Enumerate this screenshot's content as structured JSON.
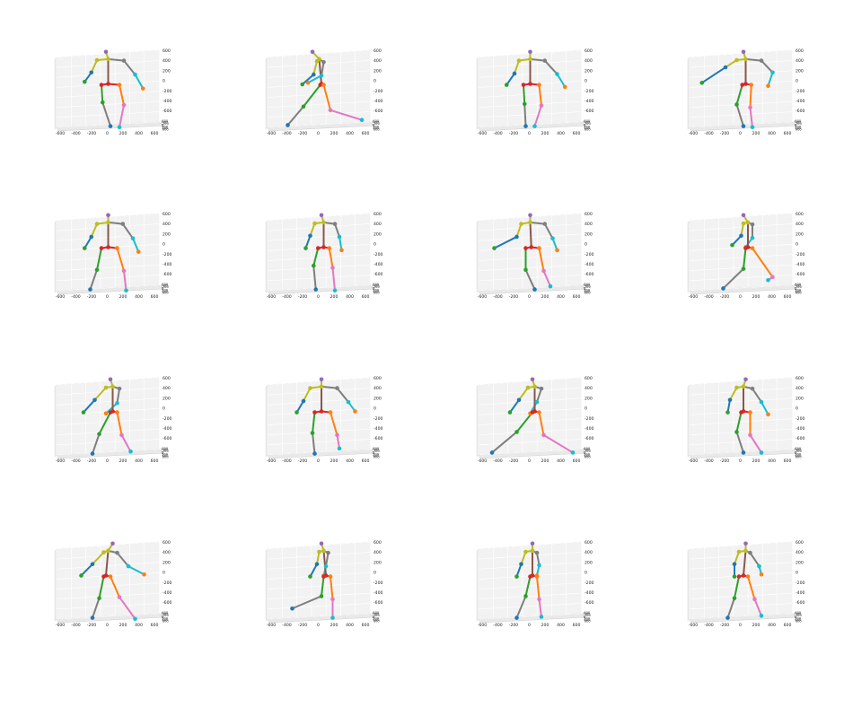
{
  "chart_data": {
    "type": "3d-skeleton-grid",
    "rows": 4,
    "cols": 4,
    "axes": {
      "x_ticks": [
        "-600",
        "-400",
        "-200",
        "0",
        "200",
        "400",
        "600"
      ],
      "z_ticks": [
        "600",
        "400",
        "200",
        "0",
        "-200",
        "-400",
        "-600"
      ],
      "y_ticks_compressed": [
        "-600",
        "-400",
        "-200",
        "0",
        "200",
        "400",
        "600"
      ],
      "xlim": [
        -700,
        700
      ],
      "zlim": [
        -700,
        700
      ],
      "grid": true,
      "background": "#f2f2f2"
    },
    "colors": {
      "head": "#9467bd",
      "neck": "#bcbd22",
      "torso": "#8c564b",
      "spine": "#7f7f7f",
      "left_arm_upper": "#bcbd22",
      "left_arm_lower": "#1f77b4",
      "left_hand": "#2ca02c",
      "right_arm_upper": "#7f7f7f",
      "right_arm_lower": "#17becf",
      "right_hand": "#ff7f0e",
      "hip": "#d62728",
      "left_thigh": "#2ca02c",
      "left_shin": "#7f7f7f",
      "left_foot": "#1f77b4",
      "right_thigh": "#ff7f0e",
      "right_shin": "#e377c2",
      "right_foot": "#17becf"
    },
    "poses": [
      {
        "head": [
          0,
          560
        ],
        "neck": [
          20,
          420
        ],
        "lsh": [
          -80,
          400
        ],
        "rsh": [
          160,
          390
        ],
        "lel": [
          -130,
          160
        ],
        "rel": [
          260,
          120
        ],
        "lhn": [
          -190,
          -20
        ],
        "rhn": [
          330,
          -150
        ],
        "hip": [
          20,
          -60
        ],
        "lhp": [
          -40,
          -80
        ],
        "rhp": [
          120,
          -80
        ],
        "lkn": [
          -30,
          -420
        ],
        "rkn": [
          160,
          -470
        ],
        "lft": [
          40,
          -880
        ],
        "rft": [
          120,
          -900
        ]
      },
      {
        "head": [
          -40,
          560
        ],
        "neck": [
          20,
          420
        ],
        "lsh": [
          0,
          380
        ],
        "rsh": [
          60,
          360
        ],
        "lel": [
          -30,
          120
        ],
        "rel": [
          40,
          100
        ],
        "lhn": [
          -130,
          -70
        ],
        "rhn": [
          -80,
          -40
        ],
        "hip": [
          40,
          -60
        ],
        "lhp": [
          30,
          -80
        ],
        "rhp": [
          60,
          -80
        ],
        "lkn": [
          -120,
          -500
        ],
        "rkn": [
          120,
          -570
        ],
        "lft": [
          -260,
          -860
        ],
        "rft": [
          400,
          -760
        ]
      },
      {
        "head": [
          20,
          560
        ],
        "neck": [
          20,
          420
        ],
        "lsh": [
          -80,
          390
        ],
        "rsh": [
          150,
          390
        ],
        "lel": [
          -120,
          140
        ],
        "rel": [
          260,
          130
        ],
        "lhn": [
          -190,
          -80
        ],
        "rhn": [
          330,
          -120
        ],
        "hip": [
          20,
          -60
        ],
        "lhp": [
          -40,
          -80
        ],
        "rhp": [
          100,
          -80
        ],
        "lkn": [
          -30,
          -450
        ],
        "rkn": [
          120,
          -480
        ],
        "lft": [
          -20,
          -880
        ],
        "rft": [
          60,
          -880
        ]
      },
      {
        "head": [
          40,
          560
        ],
        "neck": [
          60,
          420
        ],
        "lsh": [
          -20,
          400
        ],
        "rsh": [
          200,
          390
        ],
        "lel": [
          -120,
          260
        ],
        "rel": [
          300,
          160
        ],
        "lhn": [
          -330,
          -40
        ],
        "rhn": [
          260,
          -100
        ],
        "hip": [
          60,
          -60
        ],
        "lhp": [
          30,
          -80
        ],
        "rhp": [
          110,
          -80
        ],
        "lkn": [
          -20,
          -460
        ],
        "rkn": [
          100,
          -520
        ],
        "lft": [
          40,
          -880
        ],
        "rft": [
          120,
          -900
        ]
      },
      {
        "head": [
          20,
          560
        ],
        "neck": [
          20,
          420
        ],
        "lsh": [
          -80,
          390
        ],
        "rsh": [
          150,
          390
        ],
        "lel": [
          -130,
          140
        ],
        "rel": [
          240,
          110
        ],
        "lhn": [
          -190,
          -80
        ],
        "rhn": [
          290,
          -150
        ],
        "hip": [
          20,
          -60
        ],
        "lhp": [
          -40,
          -80
        ],
        "rhp": [
          100,
          -80
        ],
        "lkn": [
          -80,
          -500
        ],
        "rkn": [
          160,
          -520
        ],
        "lft": [
          -140,
          -880
        ],
        "rft": [
          180,
          -900
        ]
      },
      {
        "head": [
          40,
          560
        ],
        "neck": [
          60,
          420
        ],
        "lsh": [
          -20,
          400
        ],
        "rsh": [
          160,
          390
        ],
        "lel": [
          -60,
          160
        ],
        "rel": [
          200,
          140
        ],
        "lhn": [
          -100,
          -80
        ],
        "rhn": [
          220,
          -120
        ],
        "hip": [
          60,
          -60
        ],
        "lhp": [
          10,
          -80
        ],
        "rhp": [
          110,
          -80
        ],
        "lkn": [
          -30,
          -420
        ],
        "rkn": [
          140,
          -460
        ],
        "lft": [
          -10,
          -880
        ],
        "rft": [
          160,
          -900
        ]
      },
      {
        "head": [
          20,
          560
        ],
        "neck": [
          20,
          420
        ],
        "lsh": [
          -60,
          390
        ],
        "rsh": [
          150,
          390
        ],
        "lel": [
          -100,
          140
        ],
        "rel": [
          220,
          110
        ],
        "lhn": [
          -300,
          -80
        ],
        "rhn": [
          260,
          -120
        ],
        "hip": [
          30,
          -60
        ],
        "lhp": [
          -20,
          -80
        ],
        "rhp": [
          100,
          -80
        ],
        "lkn": [
          -20,
          -500
        ],
        "rkn": [
          140,
          -520
        ],
        "lft": [
          60,
          -880
        ],
        "rft": [
          200,
          -820
        ]
      },
      {
        "head": [
          40,
          560
        ],
        "neck": [
          80,
          420
        ],
        "lsh": [
          40,
          400
        ],
        "rsh": [
          120,
          380
        ],
        "lel": [
          20,
          160
        ],
        "rel": [
          120,
          120
        ],
        "lhn": [
          -60,
          -20
        ],
        "rhn": [
          60,
          -60
        ],
        "hip": [
          80,
          -60
        ],
        "lhp": [
          60,
          -80
        ],
        "rhp": [
          120,
          -80
        ],
        "lkn": [
          40,
          -480
        ],
        "rkn": [
          300,
          -640
        ],
        "lft": [
          -140,
          -860
        ],
        "rft": [
          260,
          -700
        ]
      },
      {
        "head": [
          40,
          560
        ],
        "neck": [
          60,
          420
        ],
        "lsh": [
          0,
          400
        ],
        "rsh": [
          120,
          380
        ],
        "lel": [
          -100,
          160
        ],
        "rel": [
          100,
          100
        ],
        "lhn": [
          -200,
          -80
        ],
        "rhn": [
          0,
          -100
        ],
        "hip": [
          60,
          -60
        ],
        "lhp": [
          40,
          -80
        ],
        "rhp": [
          100,
          -80
        ],
        "lkn": [
          -60,
          -500
        ],
        "rkn": [
          140,
          -520
        ],
        "lft": [
          -120,
          -880
        ],
        "rft": [
          220,
          -840
        ]
      },
      {
        "head": [
          40,
          560
        ],
        "neck": [
          40,
          420
        ],
        "lsh": [
          -60,
          390
        ],
        "rsh": [
          180,
          390
        ],
        "lel": [
          -120,
          140
        ],
        "rel": [
          280,
          120
        ],
        "lhn": [
          -180,
          -80
        ],
        "rhn": [
          340,
          -60
        ],
        "hip": [
          40,
          -60
        ],
        "lhp": [
          -20,
          -80
        ],
        "rhp": [
          120,
          -80
        ],
        "lkn": [
          -40,
          -480
        ],
        "rkn": [
          180,
          -520
        ],
        "lft": [
          -20,
          -880
        ],
        "rft": [
          200,
          -780
        ]
      },
      {
        "head": [
          40,
          560
        ],
        "neck": [
          60,
          420
        ],
        "lsh": [
          0,
          400
        ],
        "rsh": [
          120,
          380
        ],
        "lel": [
          -80,
          160
        ],
        "rel": [
          80,
          120
        ],
        "lhn": [
          -160,
          -80
        ],
        "rhn": [
          20,
          -100
        ],
        "hip": [
          60,
          -60
        ],
        "lhp": [
          40,
          -80
        ],
        "rhp": [
          100,
          -80
        ],
        "lkn": [
          -100,
          -460
        ],
        "rkn": [
          140,
          -520
        ],
        "lft": [
          -320,
          -860
        ],
        "rft": [
          400,
          -860
        ]
      },
      {
        "head": [
          60,
          560
        ],
        "neck": [
          40,
          420
        ],
        "lsh": [
          -20,
          400
        ],
        "rsh": [
          120,
          380
        ],
        "lel": [
          -80,
          160
        ],
        "rel": [
          200,
          120
        ],
        "lhn": [
          -100,
          -80
        ],
        "rhn": [
          260,
          -120
        ],
        "hip": [
          40,
          -60
        ],
        "lhp": [
          20,
          -80
        ],
        "rhp": [
          100,
          -80
        ],
        "lkn": [
          -20,
          -460
        ],
        "rkn": [
          100,
          -520
        ],
        "lft": [
          40,
          -860
        ],
        "rft": [
          200,
          -860
        ]
      },
      {
        "head": [
          60,
          560
        ],
        "neck": [
          20,
          420
        ],
        "lsh": [
          -20,
          390
        ],
        "rsh": [
          100,
          380
        ],
        "lel": [
          -120,
          160
        ],
        "rel": [
          200,
          120
        ],
        "lhn": [
          -220,
          -60
        ],
        "rhn": [
          340,
          -40
        ],
        "hip": [
          0,
          -60
        ],
        "lhp": [
          -20,
          -80
        ],
        "rhp": [
          40,
          -80
        ],
        "lkn": [
          -60,
          -500
        ],
        "rkn": [
          120,
          -480
        ],
        "lft": [
          -120,
          -880
        ],
        "rft": [
          260,
          -900
        ]
      },
      {
        "head": [
          40,
          560
        ],
        "neck": [
          60,
          420
        ],
        "lsh": [
          20,
          400
        ],
        "rsh": [
          100,
          380
        ],
        "lel": [
          0,
          160
        ],
        "rel": [
          80,
          120
        ],
        "lhn": [
          -60,
          -80
        ],
        "rhn": [
          60,
          -60
        ],
        "hip": [
          80,
          -60
        ],
        "lhp": [
          60,
          -80
        ],
        "rhp": [
          120,
          -80
        ],
        "lkn": [
          40,
          -460
        ],
        "rkn": [
          140,
          -520
        ],
        "lft": [
          -220,
          -700
        ],
        "rft": [
          140,
          -880
        ]
      },
      {
        "head": [
          40,
          560
        ],
        "neck": [
          40,
          420
        ],
        "lsh": [
          -20,
          400
        ],
        "rsh": [
          80,
          380
        ],
        "lel": [
          -60,
          160
        ],
        "rel": [
          100,
          140
        ],
        "lhn": [
          -100,
          -80
        ],
        "rhn": [
          80,
          -60
        ],
        "hip": [
          40,
          -60
        ],
        "lhp": [
          20,
          -80
        ],
        "rhp": [
          80,
          -80
        ],
        "lkn": [
          -20,
          -460
        ],
        "rkn": [
          100,
          -520
        ],
        "lft": [
          -100,
          -880
        ],
        "rft": [
          120,
          -860
        ]
      },
      {
        "head": [
          60,
          560
        ],
        "neck": [
          60,
          420
        ],
        "lsh": [
          0,
          400
        ],
        "rsh": [
          100,
          380
        ],
        "lel": [
          -40,
          160
        ],
        "rel": [
          180,
          120
        ],
        "lhn": [
          -40,
          -80
        ],
        "rhn": [
          200,
          -40
        ],
        "hip": [
          40,
          -60
        ],
        "lhp": [
          0,
          -80
        ],
        "rhp": [
          80,
          -80
        ],
        "lkn": [
          -40,
          -500
        ],
        "rkn": [
          140,
          -520
        ],
        "lft": [
          -100,
          -880
        ],
        "rft": [
          200,
          -840
        ]
      }
    ]
  }
}
